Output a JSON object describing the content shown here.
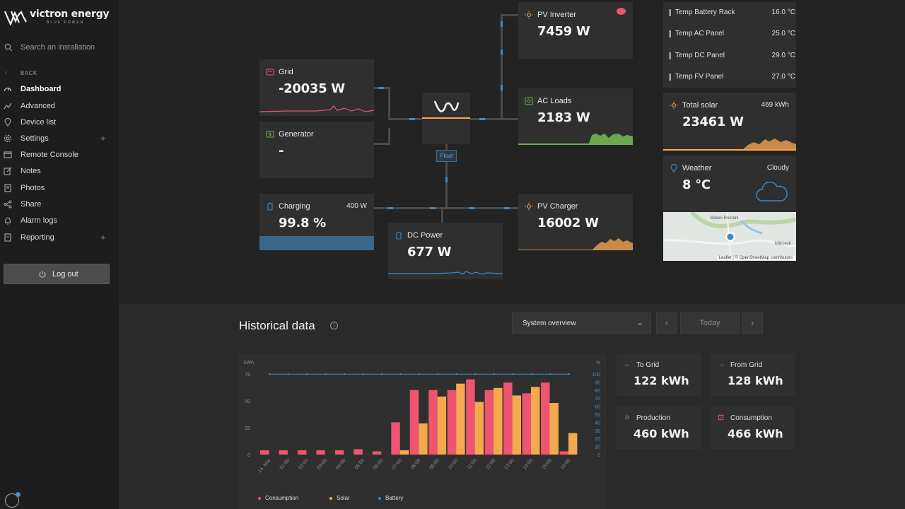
{
  "sidebar": {
    "brand": "victron energy",
    "brand_sub": "BLUE POWER",
    "search_placeholder": "Search an installation",
    "back_label": "BACK",
    "items": [
      {
        "label": "Dashboard",
        "icon": "gauge-icon",
        "active": true
      },
      {
        "label": "Advanced",
        "icon": "chart-icon"
      },
      {
        "label": "Device list",
        "icon": "pin-icon"
      },
      {
        "label": "Settings",
        "icon": "gear-icon",
        "expandable": true
      },
      {
        "label": "Remote Console",
        "icon": "console-icon"
      },
      {
        "label": "Notes",
        "icon": "edit-icon"
      },
      {
        "label": "Photos",
        "icon": "photo-icon"
      },
      {
        "label": "Share",
        "icon": "share-icon"
      },
      {
        "label": "Alarm logs",
        "icon": "bell-icon"
      },
      {
        "label": "Reporting",
        "icon": "report-icon",
        "expandable": true
      }
    ],
    "plus": "+",
    "logout_label": "Log out"
  },
  "dashboard": {
    "grid": {
      "title": "Grid",
      "value": "-20035 W"
    },
    "generator": {
      "title": "Generator",
      "value": "-"
    },
    "charging": {
      "title": "Charging",
      "power": "400 W",
      "value": "99.8 %",
      "level": 0.998
    },
    "dc_power": {
      "title": "DC Power",
      "value": "677 W"
    },
    "inverter_state": "Float",
    "pv_inverter": {
      "title": "PV Inverter",
      "value": "7459 W"
    },
    "ac_loads": {
      "title": "AC Loads",
      "value": "2183 W"
    },
    "pv_charger": {
      "title": "PV Charger",
      "value": "16002 W"
    },
    "temps": [
      {
        "name": "Temp Battery Rack",
        "value": "16.0 °C"
      },
      {
        "name": "Temp AC Panel",
        "value": "25.0 °C"
      },
      {
        "name": "Temp DC Panel",
        "value": "29.0 °C"
      },
      {
        "name": "Temp FV Panel",
        "value": "27.0 °C"
      }
    ],
    "total_solar": {
      "title": "Total solar",
      "energy": "469 kWh",
      "value": "23461 W"
    },
    "weather": {
      "title": "Weather",
      "condition": "Cloudy",
      "value": "8 °C"
    },
    "map": {
      "place1": "Băleni-Români",
      "place2": "Mărcești",
      "attribution": "Leaflet | © OpenStreetMap contributors"
    }
  },
  "historical": {
    "title": "Historical data",
    "info": "i",
    "dropdown": "System overview",
    "today": "Today",
    "prev": "‹",
    "next": "›",
    "stats": {
      "to_grid": {
        "label": "To Grid",
        "value": "122 kWh"
      },
      "from_grid": {
        "label": "From Grid",
        "value": "128 kWh"
      },
      "production": {
        "label": "Production",
        "value": "460 kWh"
      },
      "consumption": {
        "label": "Consumption",
        "value": "466 kWh"
      }
    }
  },
  "colors": {
    "consumption": "#ee5570",
    "solar": "#f5a94f",
    "battery": "#3f8ac7",
    "ac_loads": "#6aa84f",
    "pv": "#c98a4a"
  },
  "chart_data": {
    "type": "bar",
    "ylabel_left": "kWh",
    "ylabel_right": "%",
    "y_ticks_left": [
      "0",
      "25",
      "50",
      "75"
    ],
    "y_ticks_right": [
      "0",
      "10",
      "20",
      "30",
      "40",
      "50",
      "60",
      "70",
      "80",
      "90",
      "100"
    ],
    "ylim": [
      0,
      75
    ],
    "ylim_right": [
      0,
      100
    ],
    "categories": [
      "14. Mar",
      "01:00",
      "02:00",
      "03:00",
      "04:00",
      "05:00",
      "06:00",
      "07:00",
      "08:00",
      "09:00",
      "10:00",
      "11:00",
      "12:00",
      "13:00",
      "14:00",
      "15:00",
      "16:00"
    ],
    "series": [
      {
        "name": "Consumption",
        "values": [
          4,
          4,
          4,
          4,
          4,
          5,
          3,
          30,
          60,
          60,
          60,
          70,
          60,
          67,
          57,
          67,
          3
        ]
      },
      {
        "name": "Solar",
        "values": [
          0,
          0,
          0,
          0,
          0,
          0,
          0,
          4,
          29,
          54,
          66,
          49,
          62,
          55,
          63,
          48,
          20
        ]
      },
      {
        "name": "Battery",
        "values": [
          99.8,
          99.8,
          99.8,
          99.8,
          99.8,
          99.8,
          99.8,
          99.8,
          99.8,
          99.8,
          99.8,
          99.8,
          99.8,
          99.8,
          99.8,
          99.8,
          99.8
        ]
      }
    ],
    "legend": [
      "Consumption",
      "Solar",
      "Battery"
    ],
    "legend_position": "bottom"
  }
}
